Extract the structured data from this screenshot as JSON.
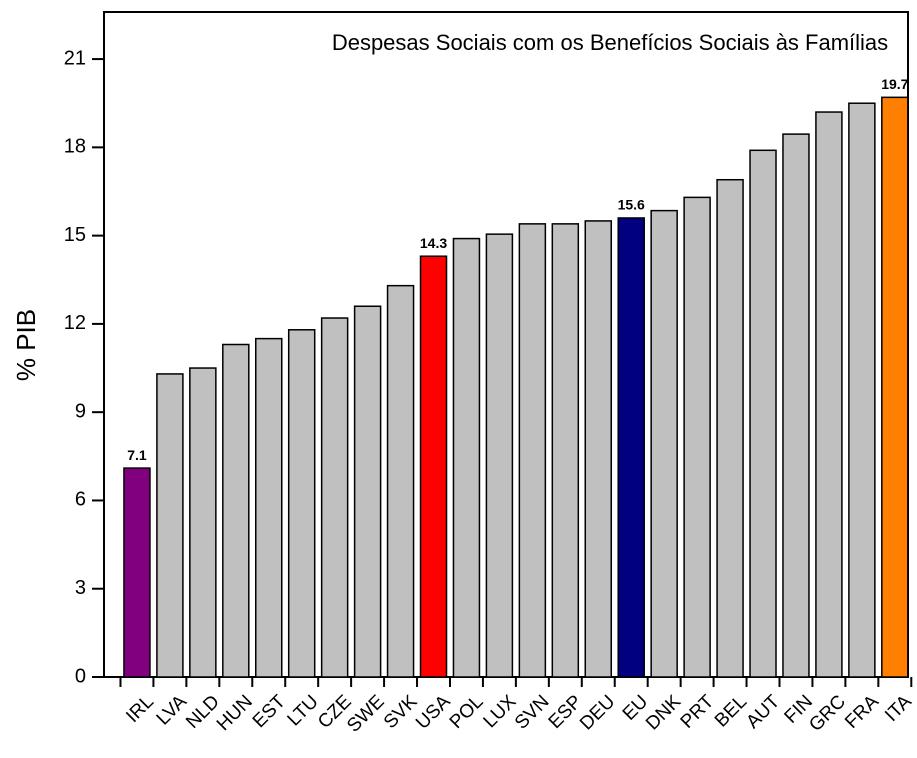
{
  "chart_data": {
    "type": "bar",
    "title": "Despesas Sociais com os Benefícios Sociais às Famílias",
    "y_label": "% PIB",
    "categories": [
      "IRL",
      "LVA",
      "NLD",
      "HUN",
      "EST",
      "LTU",
      "CZE",
      "SWE",
      "SVK",
      "USA",
      "POL",
      "LUX",
      "SVN",
      "ESP",
      "DEU",
      "EU",
      "DNK",
      "PRT",
      "BEL",
      "AUT",
      "FIN",
      "GRC",
      "FRA",
      "ITA"
    ],
    "values": [
      7.1,
      10.3,
      10.5,
      11.3,
      11.5,
      11.8,
      12.2,
      12.6,
      13.3,
      14.3,
      14.9,
      15.05,
      15.4,
      15.4,
      15.5,
      15.6,
      15.85,
      16.3,
      16.9,
      17.9,
      18.45,
      19.2,
      19.5,
      19.7
    ],
    "value_labels": [
      "7.1",
      null,
      null,
      null,
      null,
      null,
      null,
      null,
      null,
      "14.3",
      null,
      null,
      null,
      null,
      null,
      "15.6",
      null,
      null,
      null,
      null,
      null,
      null,
      null,
      "19.7"
    ],
    "colors": [
      "#800080",
      "#c0c0c0",
      "#c0c0c0",
      "#c0c0c0",
      "#c0c0c0",
      "#c0c0c0",
      "#c0c0c0",
      "#c0c0c0",
      "#c0c0c0",
      "#ff0000",
      "#c0c0c0",
      "#c0c0c0",
      "#c0c0c0",
      "#c0c0c0",
      "#c0c0c0",
      "#000080",
      "#c0c0c0",
      "#c0c0c0",
      "#c0c0c0",
      "#c0c0c0",
      "#c0c0c0",
      "#c0c0c0",
      "#c0c0c0",
      "#ff8000"
    ],
    "ylim": [
      0,
      22.6
    ],
    "yticks": [
      0,
      3,
      6,
      9,
      12,
      15,
      18,
      21
    ],
    "grid": false
  }
}
